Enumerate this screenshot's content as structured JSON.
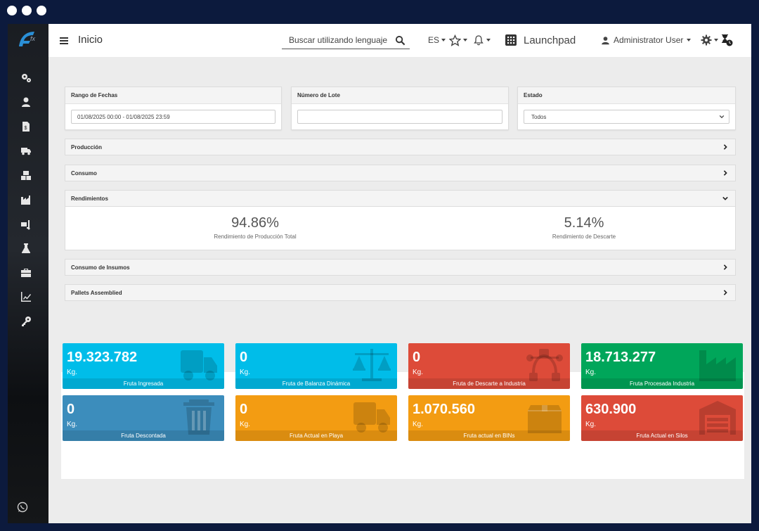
{
  "header": {
    "page_title": "Inicio",
    "search_placeholder": "Buscar utilizando lenguaje",
    "language": "ES",
    "launchpad_label": "Launchpad",
    "user_name": "Administrator User"
  },
  "filters": {
    "date_range": {
      "label": "Rango de Fechas",
      "value": "01/08/2025 00:00 - 01/08/2025 23:59"
    },
    "lot_number": {
      "label": "Número de Lote",
      "value": ""
    },
    "status": {
      "label": "Estado",
      "selected": "Todos"
    }
  },
  "sections": {
    "produccion": "Producción",
    "consumo": "Consumo",
    "rendimientos": "Rendimientos",
    "consumo_insumos": "Consumo de Insumos",
    "pallets": "Pallets Assemblied"
  },
  "rendimientos": {
    "total": {
      "value": "94.86%",
      "label": "Rendimiento de Producción Total"
    },
    "descarte": {
      "value": "5.14%",
      "label": "Rendimiento de Descarte"
    }
  },
  "tiles": [
    {
      "value": "19.323.782",
      "unit": "Kg.",
      "label": "Fruta Ingresada",
      "color": "#00bde9",
      "icon": "truck-icon"
    },
    {
      "value": "0",
      "unit": "Kg.",
      "label": "Fruta de Balanza Dinámica",
      "color": "#00bde9",
      "icon": "balance-scale-icon"
    },
    {
      "value": "0",
      "unit": "Kg.",
      "label": "Fruta de Descarte a Industria",
      "color": "#dd4b39",
      "icon": "bezier-curve-icon"
    },
    {
      "value": "18.713.277",
      "unit": "Kg.",
      "label": "Fruta Procesada Industria",
      "color": "#00a65a",
      "icon": "factory-icon"
    },
    {
      "value": "0",
      "unit": "Kg.",
      "label": "Fruta Descontada",
      "color": "#3c8dbc",
      "icon": "trash-icon"
    },
    {
      "value": "0",
      "unit": "Kg.",
      "label": "Fruta Actual en Playa",
      "color": "#f39c12",
      "icon": "truck-icon"
    },
    {
      "value": "1.070.560",
      "unit": "Kg.",
      "label": "Fruta actual en BINs",
      "color": "#f39c12",
      "icon": "box-icon"
    },
    {
      "value": "630.900",
      "unit": "Kg.",
      "label": "Fruta Actual en Silos",
      "color": "#dd4b39",
      "icon": "warehouse-icon"
    }
  ]
}
